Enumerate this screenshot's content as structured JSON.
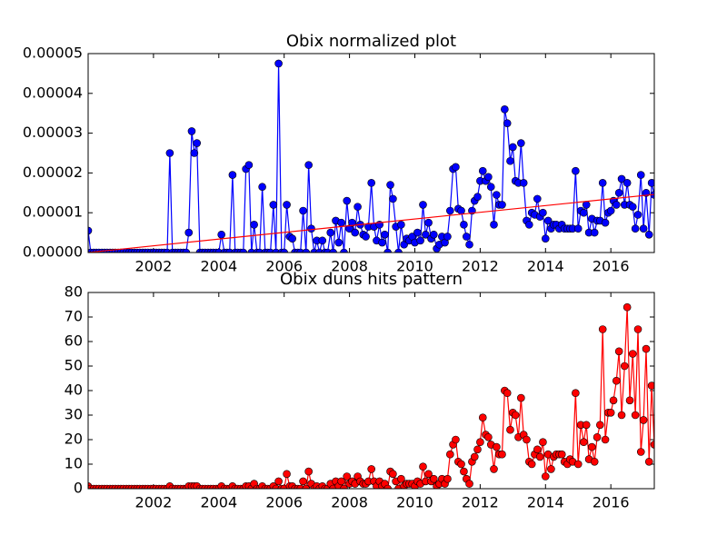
{
  "chart_data": [
    {
      "type": "line",
      "title": "Obix normalized plot",
      "x": [
        2000,
        2000.08,
        2000.17,
        2000.25,
        2000.33,
        2000.42,
        2000.5,
        2000.58,
        2000.67,
        2000.75,
        2000.83,
        2000.92,
        2001,
        2001.08,
        2001.17,
        2001.25,
        2001.33,
        2001.42,
        2001.5,
        2001.58,
        2001.67,
        2001.75,
        2001.83,
        2001.92,
        2002,
        2002.08,
        2002.17,
        2002.25,
        2002.33,
        2002.42,
        2002.5,
        2002.58,
        2002.67,
        2002.75,
        2002.83,
        2002.92,
        2003,
        2003.08,
        2003.17,
        2003.25,
        2003.33,
        2003.42,
        2003.5,
        2003.58,
        2003.67,
        2003.75,
        2003.83,
        2003.92,
        2004,
        2004.08,
        2004.17,
        2004.25,
        2004.33,
        2004.42,
        2004.5,
        2004.58,
        2004.67,
        2004.75,
        2004.83,
        2004.92,
        2005,
        2005.08,
        2005.17,
        2005.25,
        2005.33,
        2005.42,
        2005.5,
        2005.58,
        2005.67,
        2005.75,
        2005.83,
        2005.92,
        2006,
        2006.08,
        2006.17,
        2006.25,
        2006.33,
        2006.42,
        2006.5,
        2006.58,
        2006.67,
        2006.75,
        2006.83,
        2006.92,
        2007,
        2007.08,
        2007.17,
        2007.25,
        2007.33,
        2007.42,
        2007.5,
        2007.58,
        2007.67,
        2007.75,
        2007.83,
        2007.92,
        2008,
        2008.08,
        2008.17,
        2008.25,
        2008.33,
        2008.42,
        2008.5,
        2008.58,
        2008.67,
        2008.75,
        2008.83,
        2008.92,
        2009,
        2009.08,
        2009.17,
        2009.25,
        2009.33,
        2009.42,
        2009.5,
        2009.58,
        2009.67,
        2009.75,
        2009.83,
        2009.92,
        2010,
        2010.08,
        2010.17,
        2010.25,
        2010.33,
        2010.42,
        2010.5,
        2010.58,
        2010.67,
        2010.75,
        2010.83,
        2010.92,
        2011,
        2011.08,
        2011.17,
        2011.25,
        2011.33,
        2011.42,
        2011.5,
        2011.58,
        2011.67,
        2011.75,
        2011.83,
        2011.92,
        2012,
        2012.08,
        2012.17,
        2012.25,
        2012.33,
        2012.42,
        2012.5,
        2012.58,
        2012.67,
        2012.75,
        2012.83,
        2012.92,
        2013,
        2013.08,
        2013.17,
        2013.25,
        2013.33,
        2013.42,
        2013.5,
        2013.58,
        2013.67,
        2013.75,
        2013.83,
        2013.92,
        2014,
        2014.08,
        2014.17,
        2014.25,
        2014.33,
        2014.42,
        2014.5,
        2014.58,
        2014.67,
        2014.75,
        2014.83,
        2014.92,
        2015,
        2015.08,
        2015.17,
        2015.25,
        2015.33,
        2015.42,
        2015.5,
        2015.58,
        2015.67,
        2015.75,
        2015.83,
        2015.92,
        2016,
        2016.08,
        2016.17,
        2016.25,
        2016.33,
        2016.42,
        2016.5,
        2016.58,
        2016.67,
        2016.75,
        2016.83,
        2016.92,
        2017,
        2017.08,
        2017.17,
        2017.25,
        2017.33
      ],
      "series": [
        {
          "color": "#0000ff",
          "marker": "o",
          "values": [
            5.5e-06,
            0,
            0,
            0,
            0,
            0,
            0,
            0,
            0,
            0,
            0,
            0,
            0,
            0,
            0,
            0,
            0,
            0,
            0,
            0,
            0,
            0,
            0,
            0,
            0,
            0,
            0,
            0,
            0,
            0,
            2.5e-05,
            0,
            0,
            0,
            0,
            0,
            0,
            5e-06,
            3.05e-05,
            2.5e-05,
            2.75e-05,
            0,
            0,
            0,
            0,
            0,
            0,
            0,
            0,
            4.5e-06,
            0,
            0,
            0,
            1.95e-05,
            0,
            0,
            0,
            0,
            2.1e-05,
            2.2e-05,
            0,
            7e-06,
            0,
            0,
            1.65e-05,
            0,
            0,
            0,
            1.2e-05,
            0,
            4.75e-05,
            0,
            0,
            1.2e-05,
            4e-06,
            3.5e-06,
            0,
            0,
            0,
            1.05e-05,
            0,
            2.2e-05,
            6e-06,
            0,
            3e-06,
            0,
            3e-06,
            0,
            0,
            5e-06,
            0,
            8e-06,
            2.5e-06,
            7.5e-06,
            0,
            1.3e-05,
            6e-06,
            7.5e-06,
            5e-06,
            1.15e-05,
            7e-06,
            4.5e-06,
            4e-06,
            6.5e-06,
            1.75e-05,
            6.5e-06,
            3e-06,
            7e-06,
            2.5e-06,
            4.5e-06,
            0,
            1.7e-05,
            1.35e-05,
            6.5e-06,
            0,
            7e-06,
            2e-06,
            3.5e-06,
            3e-06,
            4e-06,
            2.5e-06,
            5e-06,
            3e-06,
            1.2e-05,
            4.5e-06,
            7.5e-06,
            3.5e-06,
            4.5e-06,
            1e-06,
            2e-06,
            4e-06,
            2.5e-06,
            4e-06,
            1.05e-05,
            2.1e-05,
            2.15e-05,
            1.1e-05,
            1.05e-05,
            7e-06,
            4e-06,
            2e-06,
            1.05e-05,
            1.3e-05,
            1.4e-05,
            1.8e-05,
            2.05e-05,
            1.8e-05,
            1.9e-05,
            1.65e-05,
            7e-06,
            1.45e-05,
            1.2e-05,
            1.2e-05,
            3.6e-05,
            3.25e-05,
            2.3e-05,
            2.65e-05,
            1.8e-05,
            1.75e-05,
            2.75e-05,
            1.75e-05,
            8e-06,
            7e-06,
            1e-05,
            9.5e-06,
            1.35e-05,
            9e-06,
            1e-05,
            3.5e-06,
            8e-06,
            6e-06,
            7e-06,
            7e-06,
            6e-06,
            7e-06,
            6e-06,
            6e-06,
            6e-06,
            6e-06,
            2.05e-05,
            6e-06,
            1.05e-05,
            1e-05,
            1.2e-05,
            5e-06,
            8.5e-06,
            5e-06,
            8e-06,
            8e-06,
            1.75e-05,
            7.5e-06,
            1e-05,
            1.05e-05,
            1.3e-05,
            1.2e-05,
            1.5e-05,
            1.85e-05,
            1.2e-05,
            1.75e-05,
            1.2e-05,
            1.15e-05,
            6e-06,
            9.5e-06,
            1.95e-05,
            6e-06,
            1.5e-05,
            4.5e-06,
            1.75e-05,
            1.45e-05
          ]
        },
        {
          "color": "#ff0000",
          "x": [
            2000,
            2017.33
          ],
          "values": [
            0,
            1.46e-05
          ]
        }
      ],
      "xlim": [
        2000,
        2017.33
      ],
      "xticks": [
        2002,
        2004,
        2006,
        2008,
        2010,
        2012,
        2014,
        2016
      ],
      "ylim": [
        0,
        5e-05
      ],
      "yticks": [
        {
          "value": 0,
          "label": "0.00000"
        },
        {
          "value": 1e-05,
          "label": "0.00001"
        },
        {
          "value": 2e-05,
          "label": "0.00002"
        },
        {
          "value": 3e-05,
          "label": "0.00003"
        },
        {
          "value": 4e-05,
          "label": "0.00004"
        },
        {
          "value": 5e-05,
          "label": "0.00005"
        }
      ]
    },
    {
      "type": "line",
      "title": "Obix duns hits pattern",
      "x": [
        2000,
        2000.08,
        2000.17,
        2000.25,
        2000.33,
        2000.42,
        2000.5,
        2000.58,
        2000.67,
        2000.75,
        2000.83,
        2000.92,
        2001,
        2001.08,
        2001.17,
        2001.25,
        2001.33,
        2001.42,
        2001.5,
        2001.58,
        2001.67,
        2001.75,
        2001.83,
        2001.92,
        2002,
        2002.08,
        2002.17,
        2002.25,
        2002.33,
        2002.42,
        2002.5,
        2002.58,
        2002.67,
        2002.75,
        2002.83,
        2002.92,
        2003,
        2003.08,
        2003.17,
        2003.25,
        2003.33,
        2003.42,
        2003.5,
        2003.58,
        2003.67,
        2003.75,
        2003.83,
        2003.92,
        2004,
        2004.08,
        2004.17,
        2004.25,
        2004.33,
        2004.42,
        2004.5,
        2004.58,
        2004.67,
        2004.75,
        2004.83,
        2004.92,
        2005,
        2005.08,
        2005.17,
        2005.25,
        2005.33,
        2005.42,
        2005.5,
        2005.58,
        2005.67,
        2005.75,
        2005.83,
        2005.92,
        2006,
        2006.08,
        2006.17,
        2006.25,
        2006.33,
        2006.42,
        2006.5,
        2006.58,
        2006.67,
        2006.75,
        2006.83,
        2006.92,
        2007,
        2007.08,
        2007.17,
        2007.25,
        2007.33,
        2007.42,
        2007.5,
        2007.58,
        2007.67,
        2007.75,
        2007.83,
        2007.92,
        2008,
        2008.08,
        2008.17,
        2008.25,
        2008.33,
        2008.42,
        2008.5,
        2008.58,
        2008.67,
        2008.75,
        2008.83,
        2008.92,
        2009,
        2009.08,
        2009.17,
        2009.25,
        2009.33,
        2009.42,
        2009.5,
        2009.58,
        2009.67,
        2009.75,
        2009.83,
        2009.92,
        2010,
        2010.08,
        2010.17,
        2010.25,
        2010.33,
        2010.42,
        2010.5,
        2010.58,
        2010.67,
        2010.75,
        2010.83,
        2010.92,
        2011,
        2011.08,
        2011.17,
        2011.25,
        2011.33,
        2011.42,
        2011.5,
        2011.58,
        2011.67,
        2011.75,
        2011.83,
        2011.92,
        2012,
        2012.08,
        2012.17,
        2012.25,
        2012.33,
        2012.42,
        2012.5,
        2012.58,
        2012.67,
        2012.75,
        2012.83,
        2012.92,
        2013,
        2013.08,
        2013.17,
        2013.25,
        2013.33,
        2013.42,
        2013.5,
        2013.58,
        2013.67,
        2013.75,
        2013.83,
        2013.92,
        2014,
        2014.08,
        2014.17,
        2014.25,
        2014.33,
        2014.42,
        2014.5,
        2014.58,
        2014.67,
        2014.75,
        2014.83,
        2014.92,
        2015,
        2015.08,
        2015.17,
        2015.25,
        2015.33,
        2015.42,
        2015.5,
        2015.58,
        2015.67,
        2015.75,
        2015.83,
        2015.92,
        2016,
        2016.08,
        2016.17,
        2016.25,
        2016.33,
        2016.42,
        2016.5,
        2016.58,
        2016.67,
        2016.75,
        2016.83,
        2016.92,
        2017,
        2017.08,
        2017.17,
        2017.25,
        2017.33
      ],
      "series": [
        {
          "color": "#ff0000",
          "marker": "o",
          "values": [
            1,
            0,
            0,
            0,
            0,
            0,
            0,
            0,
            0,
            0,
            0,
            0,
            0,
            0,
            0,
            0,
            0,
            0,
            0,
            0,
            0,
            0,
            0,
            0,
            0,
            0,
            0,
            0,
            0,
            0,
            1,
            0,
            0,
            0,
            0,
            0,
            0,
            1,
            1,
            1,
            1,
            0,
            0,
            0,
            0,
            0,
            0,
            0,
            0,
            1,
            0,
            0,
            0,
            1,
            0,
            0,
            0,
            0,
            1,
            1,
            0,
            2,
            0,
            0,
            1,
            0,
            0,
            0,
            1,
            0,
            3,
            0,
            0,
            6,
            1,
            1,
            0,
            0,
            0,
            3,
            0,
            7,
            2,
            0,
            1,
            0,
            1,
            0,
            0,
            2,
            0,
            3,
            1,
            3,
            0,
            5,
            2,
            3,
            2,
            5,
            3,
            2,
            2,
            3,
            8,
            3,
            1,
            3,
            1,
            2,
            0,
            7,
            6,
            3,
            0,
            4,
            1,
            2,
            2,
            2,
            1,
            3,
            2,
            9,
            3,
            6,
            3,
            4,
            1,
            2,
            4,
            2,
            4,
            14,
            18,
            20,
            11,
            10,
            7,
            4,
            2,
            11,
            13,
            16,
            19,
            29,
            22,
            21,
            18,
            8,
            17,
            14,
            14,
            40,
            39,
            24,
            31,
            30,
            21,
            37,
            22,
            20,
            11,
            10,
            14,
            16,
            13,
            19,
            5,
            14,
            8,
            13,
            14,
            14,
            14,
            11,
            10,
            12,
            11,
            39,
            10,
            26,
            19,
            26,
            12,
            17,
            11,
            21,
            26,
            65,
            20,
            31,
            31,
            36,
            44,
            56,
            30,
            50,
            74,
            36,
            55,
            30,
            65,
            15,
            28,
            57,
            11,
            42,
            18
          ]
        }
      ],
      "xlim": [
        2000,
        2017.33
      ],
      "xticks": [
        2002,
        2004,
        2006,
        2008,
        2010,
        2012,
        2014,
        2016
      ],
      "ylim": [
        0,
        80
      ],
      "yticks": [
        0,
        10,
        20,
        30,
        40,
        50,
        60,
        70,
        80
      ]
    }
  ]
}
